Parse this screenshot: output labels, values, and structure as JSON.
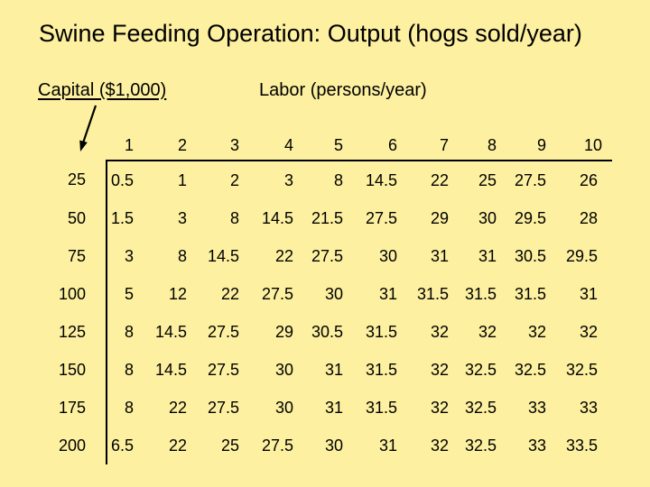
{
  "slide": {
    "title": "Swine Feeding Operation: Output (hogs sold/year)",
    "capital_label": "Capital ($1,000)",
    "labor_label": "Labor (persons/year)",
    "background_color": "#FDF0A0",
    "text_color": "#000000",
    "line_color": "#000000"
  },
  "chart_data": {
    "type": "table",
    "title": "Swine Feeding Operation: Output (hogs sold/year)",
    "row_axis_label": "Capital ($1,000)",
    "column_axis_label": "Labor (persons/year)",
    "columns": [
      1,
      2,
      3,
      4,
      5,
      6,
      7,
      8,
      9,
      10
    ],
    "rows": [
      {
        "capital": 25,
        "values": [
          0.5,
          1,
          2,
          3,
          8,
          14.5,
          22,
          25,
          27.5,
          26
        ]
      },
      {
        "capital": 50,
        "values": [
          1.5,
          3,
          8,
          14.5,
          21.5,
          27.5,
          29,
          30,
          29.5,
          28
        ]
      },
      {
        "capital": 75,
        "values": [
          3,
          8,
          14.5,
          22,
          27.5,
          30,
          31,
          31,
          30.5,
          29.5
        ]
      },
      {
        "capital": 100,
        "values": [
          5,
          12,
          22,
          27.5,
          30,
          31,
          31.5,
          31.5,
          31.5,
          31
        ]
      },
      {
        "capital": 125,
        "values": [
          8,
          14.5,
          27.5,
          29,
          30.5,
          31.5,
          32,
          32,
          32,
          32
        ]
      },
      {
        "capital": 150,
        "values": [
          8,
          14.5,
          27.5,
          30,
          31,
          31.5,
          32,
          32.5,
          32.5,
          32.5
        ]
      },
      {
        "capital": 175,
        "values": [
          8,
          22,
          27.5,
          30,
          31,
          31.5,
          32,
          32.5,
          33,
          33
        ]
      },
      {
        "capital": 200,
        "values": [
          6.5,
          22,
          25,
          27.5,
          30,
          31,
          32,
          32.5,
          33,
          33.5
        ]
      }
    ]
  }
}
